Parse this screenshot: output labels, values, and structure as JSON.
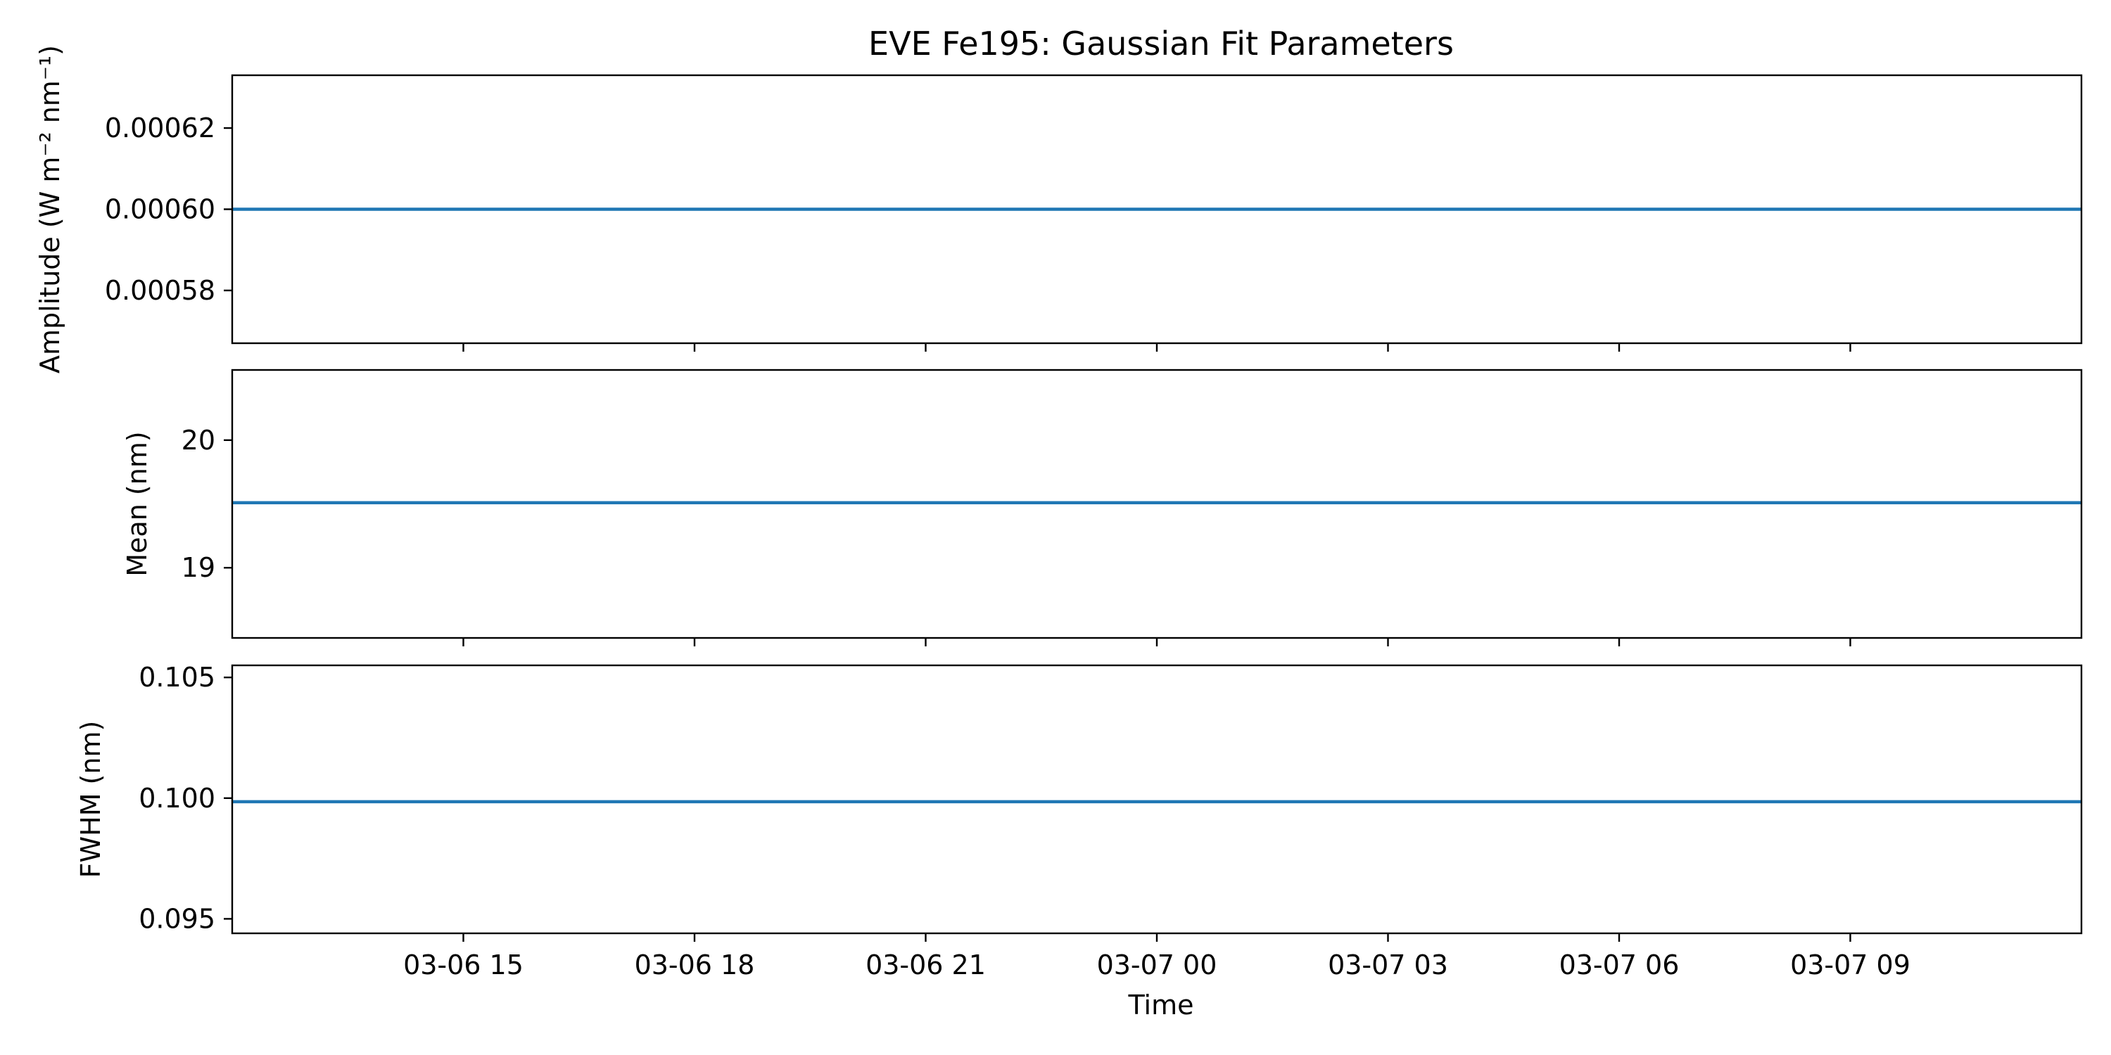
{
  "figure": {
    "title": "EVE Fe195: Gaussian Fit Parameters",
    "xlabel": "Time"
  },
  "chart_data": [
    {
      "type": "line",
      "ylabel": "Amplitude (W m⁻² nm⁻¹)",
      "x_tick_labels": [],
      "y_ticks": [
        0.00058,
        0.0006,
        0.00062
      ],
      "y_tick_labels": [
        "0.00058",
        "0.00060",
        "0.00062"
      ],
      "ylim": [
        0.000567,
        0.000633
      ],
      "series": [
        {
          "x": [
            "03-06 12:00",
            "03-07 12:00"
          ],
          "y": [
            0.0006,
            0.0006
          ],
          "color": "#1f77b4"
        }
      ]
    },
    {
      "type": "line",
      "ylabel": "Mean (nm)",
      "x_tick_labels": [],
      "y_ticks": [
        19,
        20
      ],
      "y_tick_labels": [
        "19",
        "20"
      ],
      "ylim": [
        18.45,
        20.55
      ],
      "series": [
        {
          "x": [
            "03-06 12:00",
            "03-07 12:00"
          ],
          "y": [
            19.51,
            19.51
          ],
          "color": "#1f77b4"
        }
      ]
    },
    {
      "type": "line",
      "ylabel": "FWHM (nm)",
      "x_tick_labels": [
        "03-06 15",
        "03-06 18",
        "03-06 21",
        "03-07 00",
        "03-07 03",
        "03-07 06",
        "03-07 09"
      ],
      "y_ticks": [
        0.095,
        0.1,
        0.105
      ],
      "y_tick_labels": [
        "0.095",
        "0.100",
        "0.105"
      ],
      "ylim": [
        0.0944,
        0.1055
      ],
      "series": [
        {
          "x": [
            "03-06 12:00",
            "03-07 12:00"
          ],
          "y": [
            0.09985,
            0.09985
          ],
          "color": "#1f77b4"
        }
      ]
    }
  ],
  "x_axis": {
    "ticks": [
      "03-06 15",
      "03-06 18",
      "03-06 21",
      "03-07 00",
      "03-07 03",
      "03-07 06",
      "03-07 09"
    ],
    "xlim": [
      "03-06 12:00",
      "03-07 12:00"
    ]
  }
}
